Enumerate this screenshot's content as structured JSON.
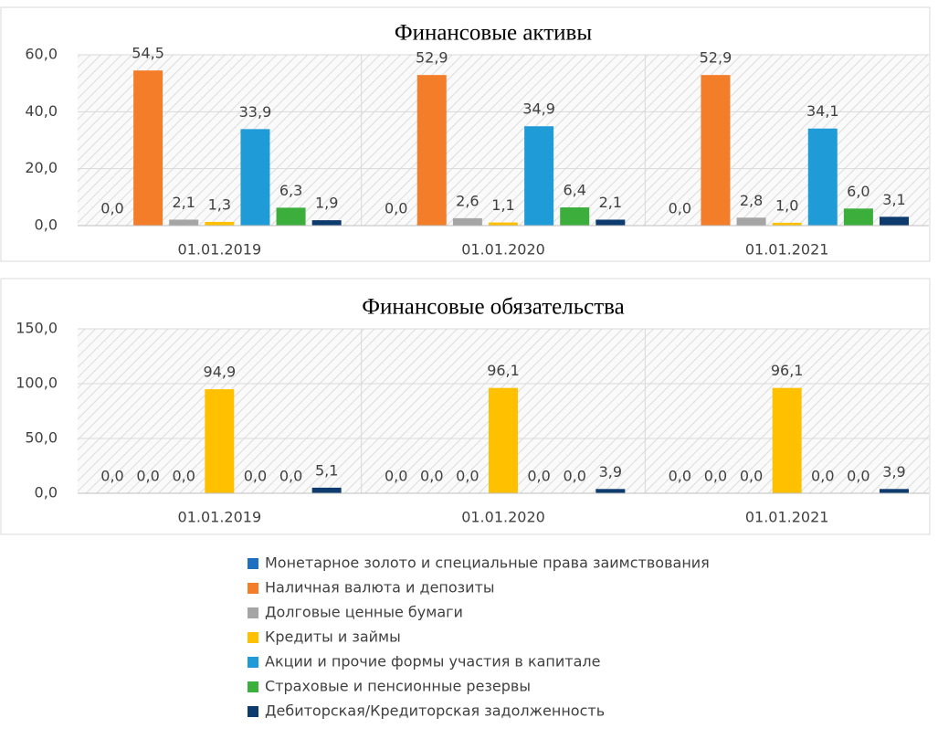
{
  "chart_data": [
    {
      "type": "bar",
      "title": "Финансовые активы",
      "categories": [
        "01.01.2019",
        "01.01.2020",
        "01.01.2021"
      ],
      "ylim": [
        0,
        60
      ],
      "yticks": [
        {
          "value": 0,
          "label": "0,0"
        },
        {
          "value": 20,
          "label": "20,0"
        },
        {
          "value": 40,
          "label": "40,0"
        },
        {
          "value": 60,
          "label": "60,0"
        }
      ],
      "grid": true,
      "series": [
        {
          "name": "Монетарное золото и специальные права заимствования",
          "color": "#1f6fc0",
          "values": [
            0,
            0,
            0
          ],
          "value_labels": [
            "0,0",
            "0,0",
            "0,0"
          ]
        },
        {
          "name": "Наличная валюта и депозиты",
          "color": "#f47d2a",
          "values": [
            54.5,
            52.9,
            52.9
          ],
          "value_labels": [
            "54,5",
            "52,9",
            "52,9"
          ]
        },
        {
          "name": "Долговые ценные бумаги",
          "color": "#a5a5a5",
          "values": [
            2.1,
            2.6,
            2.8
          ],
          "value_labels": [
            "2,1",
            "2,6",
            "2,8"
          ]
        },
        {
          "name": "Кредиты и займы",
          "color": "#ffc000",
          "values": [
            1.3,
            1.1,
            1.0
          ],
          "value_labels": [
            "1,3",
            "1,1",
            "1,0"
          ]
        },
        {
          "name": "Акции и прочие формы участия в капитале",
          "color": "#1f9bd7",
          "values": [
            33.9,
            34.9,
            34.1
          ],
          "value_labels": [
            "33,9",
            "34,9",
            "34,1"
          ]
        },
        {
          "name": "Страховые и пенсионные резервы",
          "color": "#3cae3c",
          "values": [
            6.3,
            6.4,
            6.0
          ],
          "value_labels": [
            "6,3",
            "6,4",
            "6,0"
          ]
        },
        {
          "name": "Дебиторская/Кредиторская задолженность",
          "color": "#0e3b6e",
          "values": [
            1.9,
            2.1,
            3.1
          ],
          "value_labels": [
            "1,9",
            "2,1",
            "3,1"
          ]
        }
      ]
    },
    {
      "type": "bar",
      "title": "Финансовые обязательства",
      "categories": [
        "01.01.2019",
        "01.01.2020",
        "01.01.2021"
      ],
      "ylim": [
        0,
        150
      ],
      "yticks": [
        {
          "value": 0,
          "label": "0,0"
        },
        {
          "value": 50,
          "label": "50,0"
        },
        {
          "value": 100,
          "label": "100,0"
        },
        {
          "value": 150,
          "label": "150,0"
        }
      ],
      "grid": true,
      "series": [
        {
          "name": "Монетарное золото и специальные права заимствования",
          "color": "#1f6fc0",
          "values": [
            0,
            0,
            0
          ],
          "value_labels": [
            "0,0",
            "0,0",
            "0,0"
          ]
        },
        {
          "name": "Наличная валюта и депозиты",
          "color": "#f47d2a",
          "values": [
            0,
            0,
            0
          ],
          "value_labels": [
            "0,0",
            "0,0",
            "0,0"
          ]
        },
        {
          "name": "Долговые ценные бумаги",
          "color": "#a5a5a5",
          "values": [
            0,
            0,
            0
          ],
          "value_labels": [
            "0,0",
            "0,0",
            "0,0"
          ]
        },
        {
          "name": "Кредиты и займы",
          "color": "#ffc000",
          "values": [
            94.9,
            96.1,
            96.1
          ],
          "value_labels": [
            "94,9",
            "96,1",
            "96,1"
          ]
        },
        {
          "name": "Акции и прочие формы участия в капитале",
          "color": "#1f9bd7",
          "values": [
            0,
            0,
            0
          ],
          "value_labels": [
            "0,0",
            "0,0",
            "0,0"
          ]
        },
        {
          "name": "Страховые и пенсионные резервы",
          "color": "#3cae3c",
          "values": [
            0,
            0,
            0
          ],
          "value_labels": [
            "0,0",
            "0,0",
            "0,0"
          ]
        },
        {
          "name": "Дебиторская/Кредиторская задолженность",
          "color": "#0e3b6e",
          "values": [
            5.1,
            3.9,
            3.9
          ],
          "value_labels": [
            "5,1",
            "3,9",
            "3,9"
          ]
        }
      ]
    }
  ]
}
